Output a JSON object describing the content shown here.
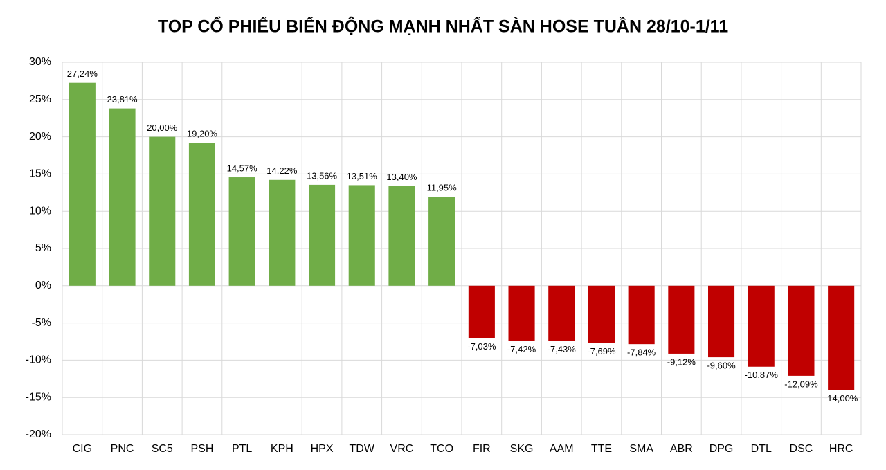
{
  "chart_data": {
    "type": "bar",
    "title": "TOP CỔ PHIẾU BIẾN ĐỘNG MẠNH NHẤT SÀN HOSE TUẦN 28/10-1/11",
    "categories": [
      "CIG",
      "PNC",
      "SC5",
      "PSH",
      "PTL",
      "KPH",
      "HPX",
      "TDW",
      "VRC",
      "TCO",
      "FIR",
      "SKG",
      "AAM",
      "TTE",
      "SMA",
      "ABR",
      "DPG",
      "DTL",
      "DSC",
      "HRC"
    ],
    "values": [
      27.24,
      23.81,
      20.0,
      19.2,
      14.57,
      14.22,
      13.56,
      13.51,
      13.4,
      11.95,
      -7.03,
      -7.42,
      -7.43,
      -7.69,
      -7.84,
      -9.12,
      -9.6,
      -10.87,
      -12.09,
      -14.0
    ],
    "value_labels": [
      "27,24%",
      "23,81%",
      "20,00%",
      "19,20%",
      "14,57%",
      "14,22%",
      "13,56%",
      "13,51%",
      "13,40%",
      "11,95%",
      "-7,03%",
      "-7,42%",
      "-7,43%",
      "-7,69%",
      "-7,84%",
      "-9,12%",
      "-9,60%",
      "-10,87%",
      "-12,09%",
      "-14,00%"
    ],
    "color_positive": "#70ad47",
    "color_negative": "#c00000",
    "ylim": [
      -20,
      30
    ],
    "yticks": [
      {
        "value": -20,
        "label": "-20%"
      },
      {
        "value": -15,
        "label": "-15%"
      },
      {
        "value": -10,
        "label": "-10%"
      },
      {
        "value": -5,
        "label": "-5%"
      },
      {
        "value": 0,
        "label": "0%"
      },
      {
        "value": 5,
        "label": "5%"
      },
      {
        "value": 10,
        "label": "10%"
      },
      {
        "value": 15,
        "label": "15%"
      },
      {
        "value": 20,
        "label": "20%"
      },
      {
        "value": 25,
        "label": "25%"
      },
      {
        "value": 30,
        "label": "30%"
      }
    ],
    "grid": true
  }
}
